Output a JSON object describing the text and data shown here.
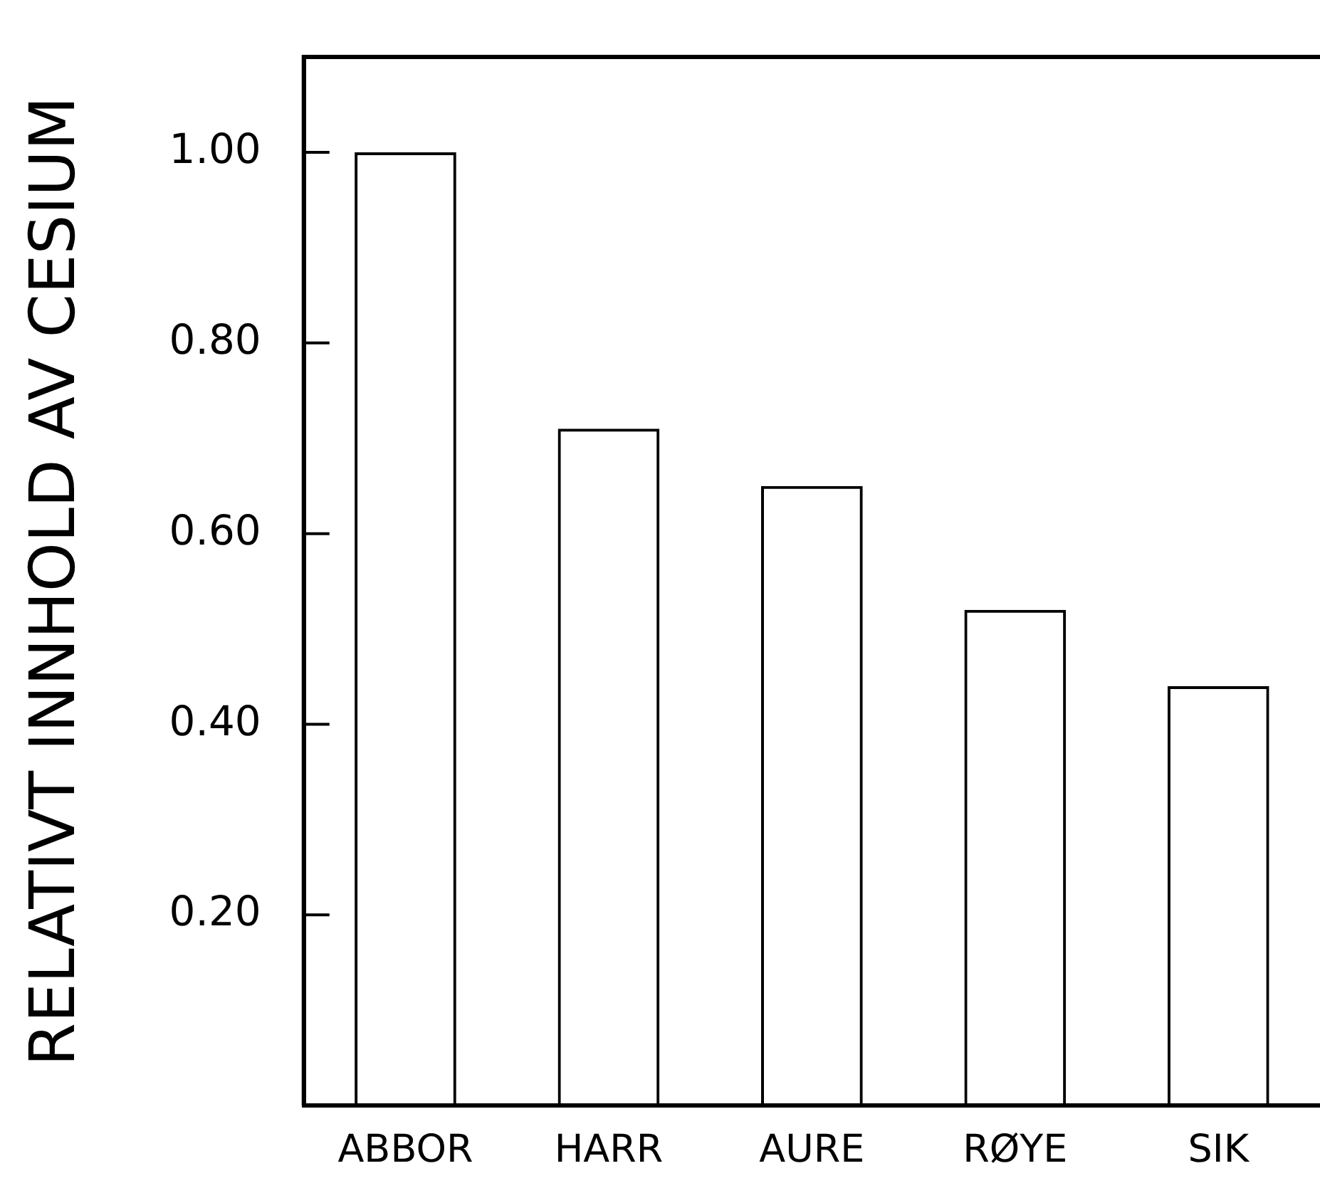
{
  "chart_data": {
    "type": "bar",
    "ylabel": "RELATIVT INNHOLD AV CESIUM",
    "categories": [
      "ABBOR",
      "HARR",
      "AURE",
      "RØYE",
      "SIK"
    ],
    "values": [
      1.0,
      0.71,
      0.65,
      0.52,
      0.44
    ],
    "color": "#000000",
    "ylim": [
      0,
      1.1
    ],
    "yticks": [
      {
        "value": 0.2,
        "label": "0.20"
      },
      {
        "value": 0.4,
        "label": "0.40"
      },
      {
        "value": 0.6,
        "label": "0.60"
      },
      {
        "value": 0.8,
        "label": "0.80"
      },
      {
        "value": 1.0,
        "label": "1.00"
      }
    ]
  }
}
